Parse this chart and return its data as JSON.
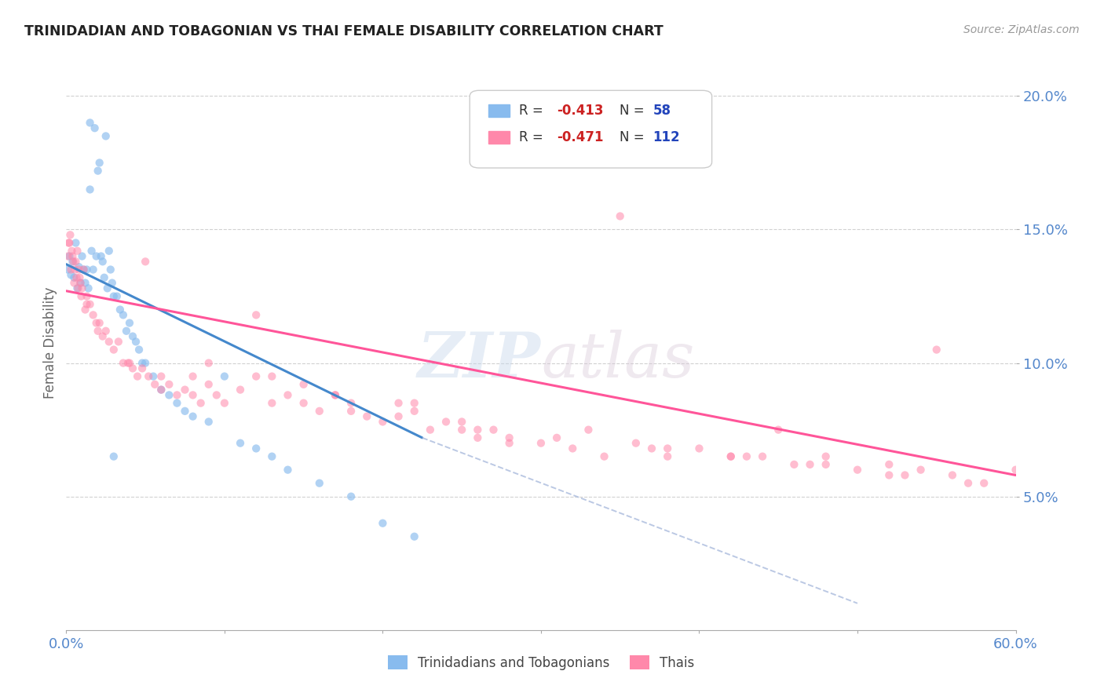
{
  "title": "TRINIDADIAN AND TOBAGONIAN VS THAI FEMALE DISABILITY CORRELATION CHART",
  "source": "Source: ZipAtlas.com",
  "ylabel": "Female Disability",
  "color_blue": "#88BBEE",
  "color_pink": "#FF88AA",
  "color_blue_line": "#4488CC",
  "color_pink_line": "#FF5599",
  "xmin": 0.0,
  "xmax": 0.6,
  "ymin": 0.0,
  "ymax": 0.215,
  "ytick_vals": [
    0.05,
    0.1,
    0.15,
    0.2
  ],
  "ytick_labels": [
    "5.0%",
    "10.0%",
    "15.0%",
    "20.0%"
  ],
  "xtick_vals": [
    0.0,
    0.1,
    0.2,
    0.3,
    0.4,
    0.5,
    0.6
  ],
  "xtick_labels": [
    "0.0%",
    "",
    "",
    "",
    "",
    "",
    "60.0%"
  ],
  "legend_r1": "R = ",
  "legend_v1": "-0.413",
  "legend_n1_label": "N = ",
  "legend_n1_val": "58",
  "legend_r2": "R = ",
  "legend_v2": "-0.471",
  "legend_n2_label": "N = ",
  "legend_n2_val": "112",
  "legend_label1": "Trinidadians and Tobagonians",
  "legend_label2": "Thais",
  "tt_x": [
    0.001,
    0.002,
    0.003,
    0.004,
    0.005,
    0.006,
    0.007,
    0.008,
    0.009,
    0.01,
    0.011,
    0.012,
    0.013,
    0.014,
    0.015,
    0.016,
    0.017,
    0.018,
    0.019,
    0.02,
    0.021,
    0.022,
    0.023,
    0.024,
    0.025,
    0.026,
    0.027,
    0.028,
    0.029,
    0.03,
    0.032,
    0.034,
    0.036,
    0.038,
    0.04,
    0.042,
    0.044,
    0.046,
    0.048,
    0.05,
    0.055,
    0.06,
    0.065,
    0.07,
    0.075,
    0.08,
    0.09,
    0.1,
    0.11,
    0.12,
    0.13,
    0.14,
    0.16,
    0.18,
    0.2,
    0.22,
    0.03,
    0.015
  ],
  "tt_y": [
    0.135,
    0.14,
    0.133,
    0.138,
    0.132,
    0.145,
    0.128,
    0.136,
    0.13,
    0.14,
    0.135,
    0.13,
    0.135,
    0.128,
    0.19,
    0.142,
    0.135,
    0.188,
    0.14,
    0.172,
    0.175,
    0.14,
    0.138,
    0.132,
    0.185,
    0.128,
    0.142,
    0.135,
    0.13,
    0.125,
    0.125,
    0.12,
    0.118,
    0.112,
    0.115,
    0.11,
    0.108,
    0.105,
    0.1,
    0.1,
    0.095,
    0.09,
    0.088,
    0.085,
    0.082,
    0.08,
    0.078,
    0.095,
    0.07,
    0.068,
    0.065,
    0.06,
    0.055,
    0.05,
    0.04,
    0.035,
    0.065,
    0.165
  ],
  "thai_x": [
    0.001,
    0.002,
    0.003,
    0.004,
    0.005,
    0.006,
    0.007,
    0.008,
    0.009,
    0.01,
    0.011,
    0.012,
    0.013,
    0.015,
    0.017,
    0.019,
    0.021,
    0.023,
    0.025,
    0.027,
    0.03,
    0.033,
    0.036,
    0.039,
    0.042,
    0.045,
    0.048,
    0.052,
    0.056,
    0.06,
    0.065,
    0.07,
    0.075,
    0.08,
    0.085,
    0.09,
    0.095,
    0.1,
    0.11,
    0.12,
    0.13,
    0.14,
    0.15,
    0.16,
    0.17,
    0.18,
    0.19,
    0.2,
    0.21,
    0.22,
    0.23,
    0.24,
    0.25,
    0.26,
    0.27,
    0.28,
    0.3,
    0.32,
    0.34,
    0.36,
    0.38,
    0.4,
    0.42,
    0.44,
    0.46,
    0.48,
    0.5,
    0.52,
    0.54,
    0.56,
    0.58,
    0.6,
    0.35,
    0.55,
    0.45,
    0.25,
    0.15,
    0.05,
    0.08,
    0.12,
    0.18,
    0.22,
    0.28,
    0.33,
    0.38,
    0.43,
    0.48,
    0.53,
    0.02,
    0.04,
    0.06,
    0.09,
    0.13,
    0.17,
    0.21,
    0.26,
    0.31,
    0.37,
    0.42,
    0.47,
    0.52,
    0.57,
    0.0015,
    0.0025,
    0.0035,
    0.0045,
    0.0055,
    0.0065,
    0.0075,
    0.0085,
    0.0095,
    0.013
  ],
  "thai_y": [
    0.14,
    0.145,
    0.135,
    0.14,
    0.13,
    0.138,
    0.142,
    0.135,
    0.13,
    0.128,
    0.135,
    0.12,
    0.125,
    0.122,
    0.118,
    0.115,
    0.115,
    0.11,
    0.112,
    0.108,
    0.105,
    0.108,
    0.1,
    0.1,
    0.098,
    0.095,
    0.098,
    0.095,
    0.092,
    0.09,
    0.092,
    0.088,
    0.09,
    0.088,
    0.085,
    0.092,
    0.088,
    0.085,
    0.09,
    0.095,
    0.085,
    0.088,
    0.085,
    0.082,
    0.088,
    0.085,
    0.08,
    0.078,
    0.08,
    0.082,
    0.075,
    0.078,
    0.075,
    0.072,
    0.075,
    0.072,
    0.07,
    0.068,
    0.065,
    0.07,
    0.065,
    0.068,
    0.065,
    0.065,
    0.062,
    0.065,
    0.06,
    0.062,
    0.06,
    0.058,
    0.055,
    0.06,
    0.155,
    0.105,
    0.075,
    0.078,
    0.092,
    0.138,
    0.095,
    0.118,
    0.082,
    0.085,
    0.07,
    0.075,
    0.068,
    0.065,
    0.062,
    0.058,
    0.112,
    0.1,
    0.095,
    0.1,
    0.095,
    0.088,
    0.085,
    0.075,
    0.072,
    0.068,
    0.065,
    0.062,
    0.058,
    0.055,
    0.145,
    0.148,
    0.142,
    0.138,
    0.135,
    0.132,
    0.128,
    0.132,
    0.125,
    0.122
  ],
  "blue_line_x": [
    0.0,
    0.225
  ],
  "blue_line_y": [
    0.137,
    0.072
  ],
  "pink_line_x": [
    0.0,
    0.6
  ],
  "pink_line_y": [
    0.127,
    0.058
  ],
  "dash_line_x": [
    0.225,
    0.5
  ],
  "dash_line_y": [
    0.072,
    0.01
  ]
}
